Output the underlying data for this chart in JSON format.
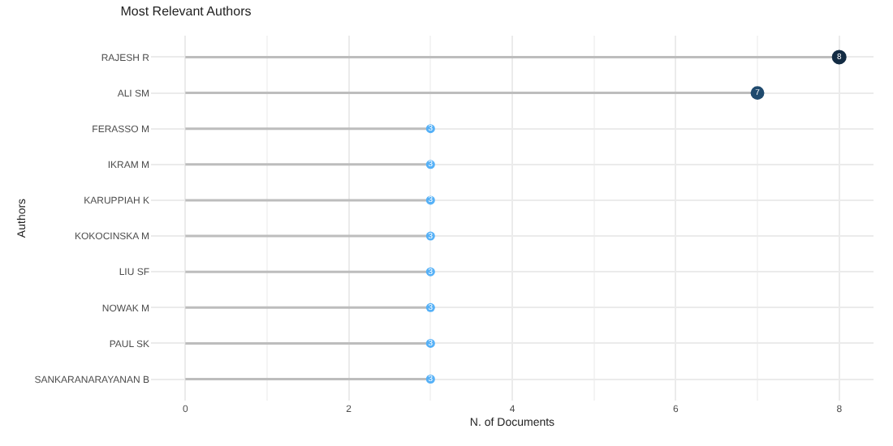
{
  "chart_data": {
    "type": "lollipop",
    "title": "Most Relevant Authors",
    "xlabel": "N. of Documents",
    "ylabel": "Authors",
    "orientation": "horizontal",
    "categories": [
      "RAJESH R",
      "ALI SM",
      "FERASSO M",
      "IKRAM M",
      "KARUPPIAH K",
      "KOKOCINSKA M",
      "LIU SF",
      "NOWAK M",
      "PAUL SK",
      "SANKARANARAYANAN B"
    ],
    "values": [
      8,
      7,
      3,
      3,
      3,
      3,
      3,
      3,
      3,
      3
    ],
    "sizes": [
      1,
      0.875,
      0.375,
      0.375,
      0.375,
      0.375,
      0.375,
      0.375,
      0.375,
      0.375
    ],
    "colors": [
      "#132b43",
      "#1f4a6e",
      "#56b1f7",
      "#56b1f7",
      "#56b1f7",
      "#56b1f7",
      "#56b1f7",
      "#56b1f7",
      "#56b1f7",
      "#56b1f7"
    ],
    "color": "#bdbdbd",
    "xlim": [
      -0.42,
      8.42
    ],
    "xticks": [
      0,
      2,
      4,
      6,
      8
    ],
    "grid": true,
    "marker": "circle",
    "data_labels": true
  }
}
